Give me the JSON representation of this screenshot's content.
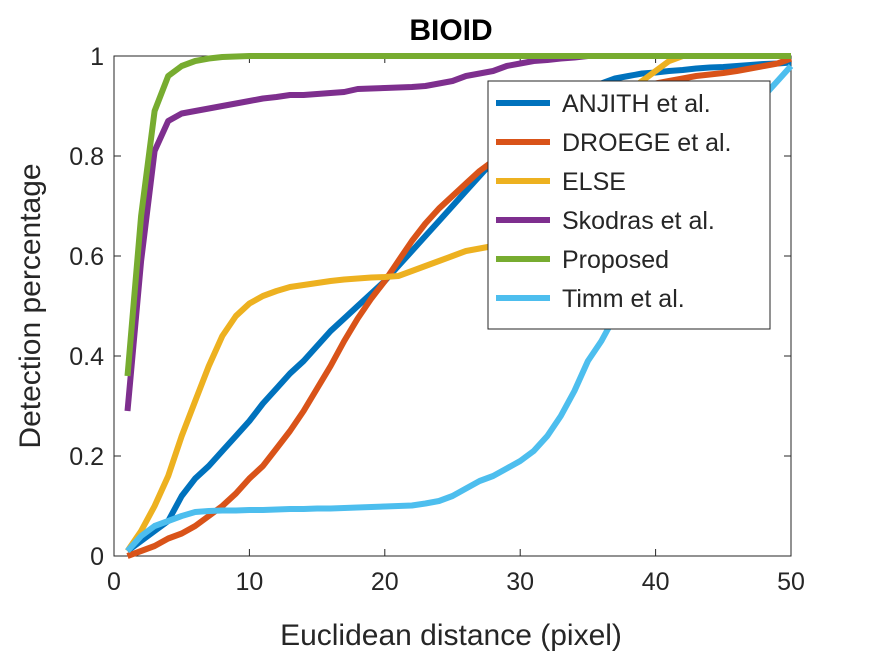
{
  "chart_data": {
    "type": "line",
    "title": "BIOID",
    "xlabel": "Euclidean distance (pixel)",
    "ylabel": "Detection percentage",
    "xlim": [
      0,
      50
    ],
    "ylim": [
      0,
      1
    ],
    "xticks": [
      "0",
      "10",
      "20",
      "30",
      "40",
      "50"
    ],
    "yticks": [
      "0",
      "0.2",
      "0.4",
      "0.6",
      "0.8",
      "1"
    ],
    "grid": false,
    "legend_position": "top-right",
    "series": [
      {
        "name": "ANJITH et al.",
        "color": "#0072BD",
        "x": [
          1,
          2,
          3,
          4,
          5,
          6,
          7,
          8,
          9,
          10,
          11,
          12,
          13,
          14,
          15,
          16,
          17,
          18,
          19,
          20,
          21,
          22,
          23,
          24,
          25,
          26,
          27,
          28,
          29,
          30,
          31,
          32,
          33,
          34,
          35,
          36,
          37,
          38,
          39,
          40,
          41,
          42,
          43,
          44,
          45,
          46,
          47,
          48,
          49,
          50
        ],
        "y": [
          0.01,
          0.03,
          0.05,
          0.07,
          0.12,
          0.155,
          0.18,
          0.21,
          0.24,
          0.27,
          0.305,
          0.335,
          0.365,
          0.39,
          0.42,
          0.45,
          0.475,
          0.5,
          0.525,
          0.55,
          0.58,
          0.61,
          0.64,
          0.67,
          0.7,
          0.73,
          0.76,
          0.79,
          0.82,
          0.85,
          0.87,
          0.89,
          0.91,
          0.925,
          0.935,
          0.945,
          0.955,
          0.96,
          0.965,
          0.967,
          0.97,
          0.972,
          0.975,
          0.977,
          0.978,
          0.98,
          0.982,
          0.984,
          0.985,
          0.987
        ]
      },
      {
        "name": "DROEGE et al.",
        "color": "#D95319",
        "x": [
          1,
          2,
          3,
          4,
          5,
          6,
          7,
          8,
          9,
          10,
          11,
          12,
          13,
          14,
          15,
          16,
          17,
          18,
          19,
          20,
          21,
          22,
          23,
          24,
          25,
          26,
          27,
          28,
          29,
          30,
          31,
          32,
          33,
          34,
          35,
          36,
          37,
          38,
          39,
          40,
          41,
          42,
          43,
          44,
          45,
          46,
          47,
          48,
          49,
          50
        ],
        "y": [
          0.0,
          0.01,
          0.02,
          0.035,
          0.045,
          0.06,
          0.08,
          0.1,
          0.125,
          0.155,
          0.18,
          0.215,
          0.25,
          0.29,
          0.335,
          0.38,
          0.43,
          0.475,
          0.515,
          0.55,
          0.59,
          0.63,
          0.665,
          0.695,
          0.72,
          0.745,
          0.77,
          0.79,
          0.81,
          0.83,
          0.85,
          0.87,
          0.885,
          0.9,
          0.91,
          0.92,
          0.93,
          0.935,
          0.94,
          0.945,
          0.95,
          0.955,
          0.96,
          0.963,
          0.966,
          0.97,
          0.975,
          0.98,
          0.985,
          0.995
        ]
      },
      {
        "name": "ELSE",
        "color": "#EDB120",
        "x": [
          1,
          2,
          3,
          4,
          5,
          6,
          7,
          8,
          9,
          10,
          11,
          12,
          13,
          14,
          15,
          16,
          17,
          18,
          19,
          20,
          21,
          22,
          23,
          24,
          25,
          26,
          27,
          28,
          29,
          30,
          31,
          32,
          33,
          34,
          35,
          36,
          37,
          38,
          39,
          40,
          41,
          42,
          43,
          44,
          45,
          46,
          47,
          48,
          49,
          50
        ],
        "y": [
          0.01,
          0.05,
          0.1,
          0.16,
          0.24,
          0.31,
          0.38,
          0.44,
          0.48,
          0.505,
          0.52,
          0.53,
          0.538,
          0.542,
          0.546,
          0.55,
          0.553,
          0.555,
          0.557,
          0.558,
          0.56,
          0.57,
          0.58,
          0.59,
          0.6,
          0.61,
          0.615,
          0.62,
          0.63,
          0.66,
          0.71,
          0.76,
          0.8,
          0.84,
          0.87,
          0.89,
          0.91,
          0.93,
          0.95,
          0.97,
          0.99,
          1.0,
          1.0,
          1.0,
          1.0,
          1.0,
          1.0,
          1.0,
          1.0,
          1.0
        ]
      },
      {
        "name": "Skodras et al.",
        "color": "#7E2F8E",
        "x": [
          1,
          2,
          3,
          4,
          5,
          6,
          7,
          8,
          9,
          10,
          11,
          12,
          13,
          14,
          15,
          16,
          17,
          18,
          19,
          20,
          21,
          22,
          23,
          24,
          25,
          26,
          27,
          28,
          29,
          30,
          31,
          32,
          33,
          34,
          35,
          36,
          37,
          38,
          39,
          40,
          41,
          42,
          43,
          44,
          45,
          46,
          47,
          48,
          49,
          50
        ],
        "y": [
          0.29,
          0.59,
          0.81,
          0.87,
          0.885,
          0.89,
          0.895,
          0.9,
          0.905,
          0.91,
          0.915,
          0.918,
          0.922,
          0.922,
          0.924,
          0.926,
          0.928,
          0.934,
          0.935,
          0.936,
          0.937,
          0.938,
          0.94,
          0.945,
          0.95,
          0.96,
          0.965,
          0.97,
          0.98,
          0.985,
          0.99,
          0.992,
          0.995,
          0.997,
          1.0,
          1.0,
          1.0,
          1.0,
          1.0,
          1.0,
          1.0,
          1.0,
          1.0,
          1.0,
          1.0,
          1.0,
          1.0,
          1.0,
          1.0,
          1.0
        ]
      },
      {
        "name": "Proposed",
        "color": "#77AC30",
        "x": [
          1,
          2,
          3,
          4,
          5,
          6,
          7,
          8,
          9,
          10,
          11,
          12,
          13,
          14,
          15,
          16,
          17,
          18,
          19,
          20,
          21,
          22,
          23,
          24,
          25,
          26,
          27,
          28,
          29,
          30,
          31,
          32,
          33,
          34,
          35,
          36,
          37,
          38,
          39,
          40,
          41,
          42,
          43,
          44,
          45,
          46,
          47,
          48,
          49,
          50
        ],
        "y": [
          0.36,
          0.68,
          0.89,
          0.96,
          0.98,
          0.99,
          0.995,
          0.998,
          0.999,
          1.0,
          1.0,
          1.0,
          1.0,
          1.0,
          1.0,
          1.0,
          1.0,
          1.0,
          1.0,
          1.0,
          1.0,
          1.0,
          1.0,
          1.0,
          1.0,
          1.0,
          1.0,
          1.0,
          1.0,
          1.0,
          1.0,
          1.0,
          1.0,
          1.0,
          1.0,
          1.0,
          1.0,
          1.0,
          1.0,
          1.0,
          1.0,
          1.0,
          1.0,
          1.0,
          1.0,
          1.0,
          1.0,
          1.0,
          1.0,
          1.0
        ]
      },
      {
        "name": "Timm et al.",
        "color": "#4DBEEE",
        "x": [
          1,
          2,
          3,
          4,
          5,
          6,
          7,
          8,
          9,
          10,
          11,
          12,
          13,
          14,
          15,
          16,
          17,
          18,
          19,
          20,
          21,
          22,
          23,
          24,
          25,
          26,
          27,
          28,
          29,
          30,
          31,
          32,
          33,
          34,
          35,
          36,
          37,
          38,
          39,
          40,
          41,
          42,
          43,
          44,
          45,
          46,
          47,
          48,
          49,
          50
        ],
        "y": [
          0.01,
          0.04,
          0.06,
          0.07,
          0.08,
          0.088,
          0.09,
          0.091,
          0.091,
          0.092,
          0.092,
          0.093,
          0.094,
          0.094,
          0.095,
          0.095,
          0.096,
          0.097,
          0.098,
          0.099,
          0.1,
          0.101,
          0.105,
          0.11,
          0.12,
          0.135,
          0.15,
          0.16,
          0.175,
          0.19,
          0.21,
          0.24,
          0.28,
          0.33,
          0.39,
          0.43,
          0.48,
          0.52,
          0.56,
          0.6,
          0.65,
          0.7,
          0.75,
          0.79,
          0.83,
          0.86,
          0.89,
          0.92,
          0.95,
          0.98
        ]
      }
    ]
  }
}
